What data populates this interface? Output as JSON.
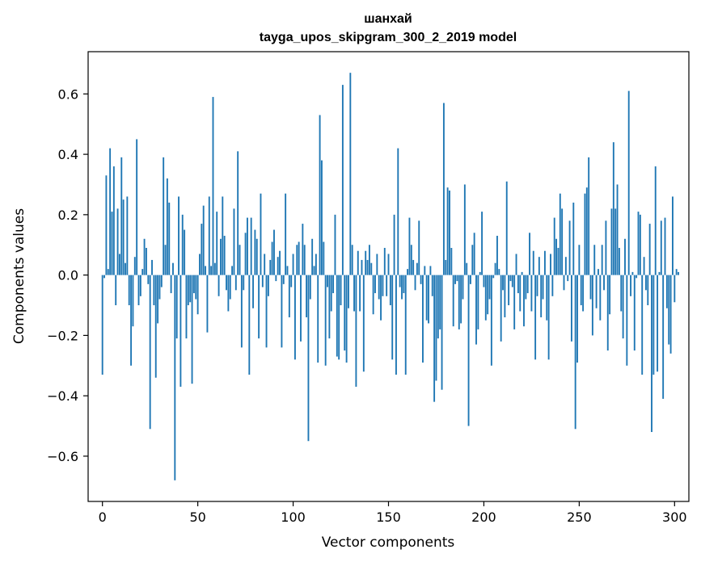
{
  "chart_data": {
    "type": "bar",
    "title": "шанхай",
    "subtitle": "tayga_upos_skipgram_300_2_2019 model",
    "xlabel": "Vector components",
    "ylabel": "Components values",
    "xlim": [
      -7.5,
      307.5
    ],
    "ylim": [
      -0.75,
      0.74
    ],
    "xticks": [
      0,
      50,
      100,
      150,
      200,
      250,
      300
    ],
    "xtick_labels": [
      "0",
      "50",
      "100",
      "150",
      "200",
      "250",
      "300"
    ],
    "yticks": [
      -0.6,
      -0.4,
      -0.2,
      0.0,
      0.2,
      0.4,
      0.6
    ],
    "ytick_labels": [
      "−0.6",
      "−0.4",
      "−0.2",
      "0.0",
      "0.2",
      "0.4",
      "0.6"
    ],
    "bar_color": "#1f77b4",
    "values": [
      -0.33,
      -0.01,
      0.33,
      0.02,
      0.42,
      0.21,
      0.36,
      -0.1,
      0.22,
      0.07,
      0.39,
      0.25,
      0.04,
      0.26,
      -0.1,
      -0.3,
      -0.17,
      0.06,
      0.45,
      -0.1,
      -0.07,
      0.02,
      0.12,
      0.09,
      -0.03,
      -0.51,
      0.05,
      -0.1,
      -0.34,
      -0.16,
      -0.08,
      -0.04,
      0.39,
      0.1,
      0.32,
      0.24,
      -0.06,
      0.04,
      -0.68,
      -0.21,
      0.26,
      -0.37,
      0.2,
      0.15,
      -0.21,
      -0.1,
      -0.09,
      -0.36,
      -0.06,
      -0.08,
      -0.13,
      0.07,
      0.17,
      0.23,
      0.03,
      -0.19,
      0.26,
      0.03,
      0.59,
      0.04,
      0.21,
      -0.07,
      0.12,
      0.26,
      0.13,
      -0.05,
      -0.12,
      -0.08,
      0.03,
      0.22,
      -0.05,
      0.41,
      0.1,
      -0.24,
      -0.05,
      0.14,
      0.19,
      -0.33,
      0.19,
      -0.11,
      0.15,
      0.12,
      -0.21,
      0.27,
      -0.04,
      0.07,
      -0.24,
      -0.07,
      0.05,
      0.11,
      0.15,
      -0.02,
      0.06,
      0.08,
      -0.24,
      -0.03,
      0.27,
      0.03,
      -0.14,
      -0.04,
      0.07,
      -0.28,
      0.1,
      0.11,
      -0.22,
      0.17,
      0.1,
      -0.14,
      -0.55,
      -0.08,
      0.12,
      0.03,
      0.07,
      -0.29,
      0.53,
      0.38,
      0.11,
      -0.3,
      -0.04,
      -0.21,
      -0.12,
      -0.06,
      0.2,
      -0.27,
      -0.28,
      -0.1,
      0.63,
      -0.25,
      -0.29,
      -0.11,
      0.67,
      0.1,
      -0.12,
      -0.37,
      0.08,
      -0.12,
      0.05,
      -0.32,
      0.08,
      0.05,
      0.1,
      0.04,
      -0.13,
      -0.06,
      0.07,
      -0.08,
      -0.15,
      -0.07,
      0.09,
      -0.07,
      0.07,
      -0.1,
      -0.28,
      0.2,
      -0.33,
      0.42,
      -0.04,
      -0.08,
      -0.06,
      -0.33,
      0.02,
      0.19,
      0.1,
      0.05,
      -0.05,
      0.04,
      0.18,
      -0.03,
      -0.29,
      0.03,
      -0.15,
      -0.16,
      0.03,
      -0.07,
      -0.42,
      -0.35,
      -0.21,
      -0.18,
      -0.38,
      0.57,
      0.05,
      0.29,
      0.28,
      0.09,
      -0.17,
      -0.03,
      -0.02,
      -0.18,
      -0.16,
      -0.08,
      0.3,
      0.04,
      -0.5,
      -0.03,
      0.1,
      0.14,
      -0.23,
      -0.18,
      0.01,
      0.21,
      -0.04,
      -0.15,
      -0.13,
      -0.08,
      -0.3,
      -0.01,
      0.04,
      0.13,
      0.02,
      -0.22,
      -0.05,
      -0.14,
      0.31,
      -0.1,
      -0.02,
      -0.04,
      -0.18,
      0.07,
      -0.06,
      -0.12,
      0.01,
      -0.17,
      -0.08,
      -0.06,
      0.14,
      -0.12,
      0.08,
      -0.28,
      -0.07,
      0.06,
      -0.14,
      -0.08,
      0.08,
      -0.15,
      -0.28,
      0.07,
      -0.07,
      0.19,
      0.12,
      0.09,
      0.27,
      0.22,
      -0.05,
      0.06,
      -0.02,
      0.18,
      -0.22,
      0.24,
      -0.51,
      -0.29,
      0.1,
      -0.1,
      -0.12,
      0.27,
      0.29,
      0.39,
      -0.08,
      -0.2,
      0.1,
      -0.11,
      0.02,
      -0.15,
      0.1,
      -0.05,
      0.18,
      -0.25,
      -0.13,
      0.22,
      0.44,
      0.22,
      0.3,
      0.09,
      -0.12,
      -0.21,
      0.12,
      -0.3,
      0.61,
      -0.07,
      0.01,
      -0.25,
      -0.01,
      0.21,
      0.2,
      -0.33,
      0.06,
      -0.05,
      -0.1,
      0.17,
      -0.52,
      -0.33,
      0.36,
      -0.32,
      0.01,
      0.18,
      -0.41,
      0.19,
      -0.11,
      -0.23,
      -0.26,
      0.26,
      -0.09,
      0.02,
      0.01
    ]
  }
}
